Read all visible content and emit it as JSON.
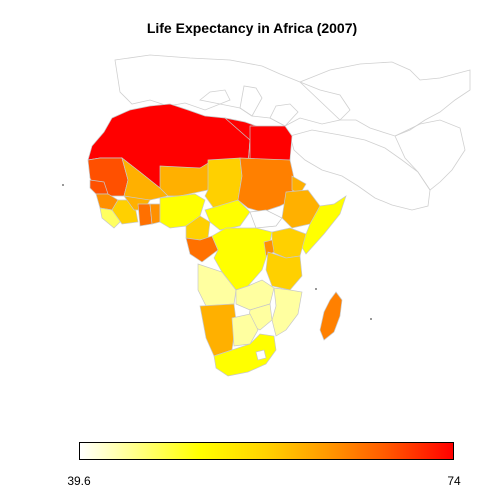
{
  "title": "Life Expectancy in Africa (2007)",
  "legend": {
    "min_label": "39.6",
    "max_label": "74",
    "min_value": 39.6,
    "max_value": 74,
    "colors": {
      "low": "#ffffff",
      "mid": "#ffff00",
      "high": "#ff0000",
      "border": "#cccccc"
    }
  }
}
